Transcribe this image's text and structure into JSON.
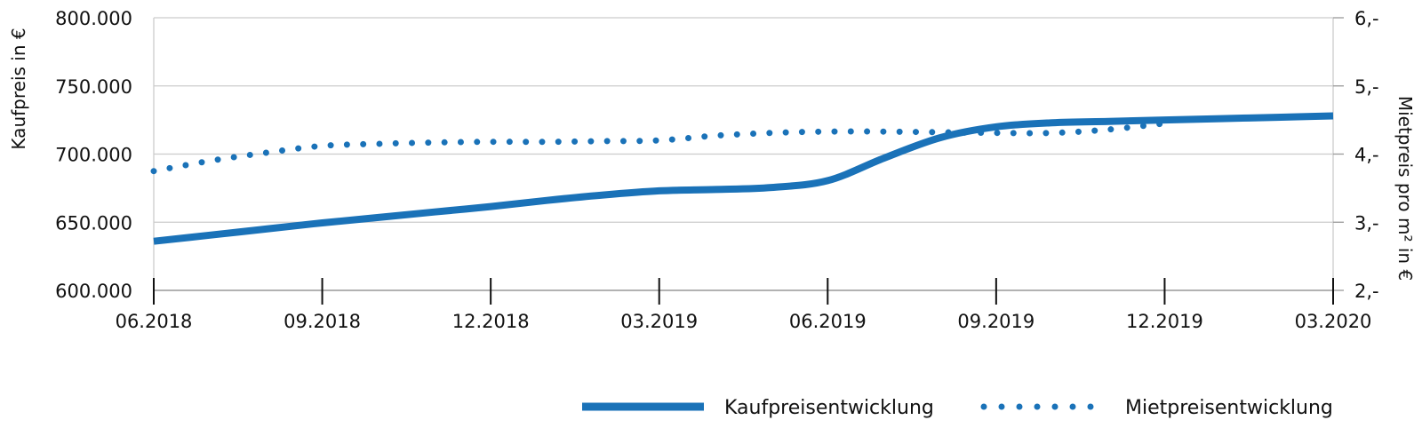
{
  "chart_data": {
    "type": "line",
    "x": [
      "06.2018",
      "07.2018",
      "08.2018",
      "09.2018",
      "10.2018",
      "11.2018",
      "12.2018",
      "01.2019",
      "02.2019",
      "03.2019",
      "04.2019",
      "05.2019",
      "06.2019",
      "07.2019",
      "08.2019",
      "09.2019",
      "10.2019",
      "11.2019",
      "12.2019",
      "01.2020",
      "02.2020",
      "03.2020"
    ],
    "xticks": [
      "06.2018",
      "09.2018",
      "12.2018",
      "03.2019",
      "06.2019",
      "09.2019",
      "12.2019",
      "03.2020"
    ],
    "series": [
      {
        "name": "Kaufpreisentwicklung",
        "axis": "left",
        "style": "solid",
        "color": "#1a72b8",
        "values": [
          636000,
          640500,
          645000,
          649500,
          653500,
          657500,
          661500,
          666000,
          670000,
          673000,
          674000,
          675500,
          680500,
          697000,
          712000,
          720000,
          723000,
          724000,
          725000,
          726000,
          727000,
          728000
        ]
      },
      {
        "name": "Mietpreisentwicklung",
        "axis": "right",
        "style": "dotted",
        "color": "#1a72b8",
        "values": [
          3.75,
          3.9,
          4.02,
          4.12,
          4.15,
          4.17,
          4.18,
          4.18,
          4.19,
          4.2,
          4.27,
          4.31,
          4.33,
          4.33,
          4.32,
          4.31,
          4.31,
          4.36,
          4.45,
          null,
          null,
          null
        ]
      }
    ],
    "y_left": {
      "label": "Kaufpreis in €",
      "ylim": [
        600000,
        800000
      ],
      "ticks": [
        "600.000",
        "650.000",
        "700.000",
        "750.000",
        "800.000"
      ]
    },
    "y_right": {
      "label": "Mietpreis pro m² in €",
      "ylim": [
        2,
        6
      ],
      "ticks": [
        "2,-",
        "3,-",
        "4,-",
        "5,-",
        "6,-"
      ]
    },
    "grid": true,
    "legend_position": "bottom-right",
    "gridline_color": "#cccccc"
  }
}
